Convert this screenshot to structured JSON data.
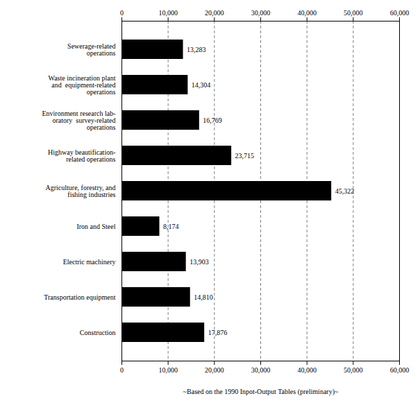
{
  "chart_data": {
    "type": "bar",
    "orientation": "horizontal",
    "categories": [
      "Construction",
      "Transportation equipment",
      "Electric machinery",
      "Iron and Steel",
      "Agriculture, forestry, and\nfishing industries",
      "Highway beautification-\nrelated operations",
      "Environment research lab-\noratory  survey-related\noperations",
      "Waste incineration plant\nand  equipment-related\noperations",
      "Sewerage-related\noperations"
    ],
    "values": [
      17876,
      14810,
      13903,
      8174,
      45322,
      23715,
      16769,
      14304,
      13283
    ],
    "value_labels": [
      "17,876",
      "14,810",
      "13,903",
      "8,174",
      "45,322",
      "23,715",
      "16,769",
      "14,304",
      "13,283"
    ],
    "data_labels": true,
    "xlabel": "~Based on the 1990 Inpot-Output Tables (preliminary)~",
    "xlim": [
      0,
      60000
    ],
    "xticks": [
      0,
      {
        "value": 10000,
        "label": "10,000"
      },
      {
        "value": 20000,
        "label": "20,000"
      },
      {
        "value": 30000,
        "label": "30,000"
      },
      {
        "value": 40000,
        "label": "40,000"
      },
      {
        "value": 50000,
        "label": "50,000"
      },
      {
        "value": 60000,
        "label": "60,000"
      }
    ],
    "grid": true
  }
}
